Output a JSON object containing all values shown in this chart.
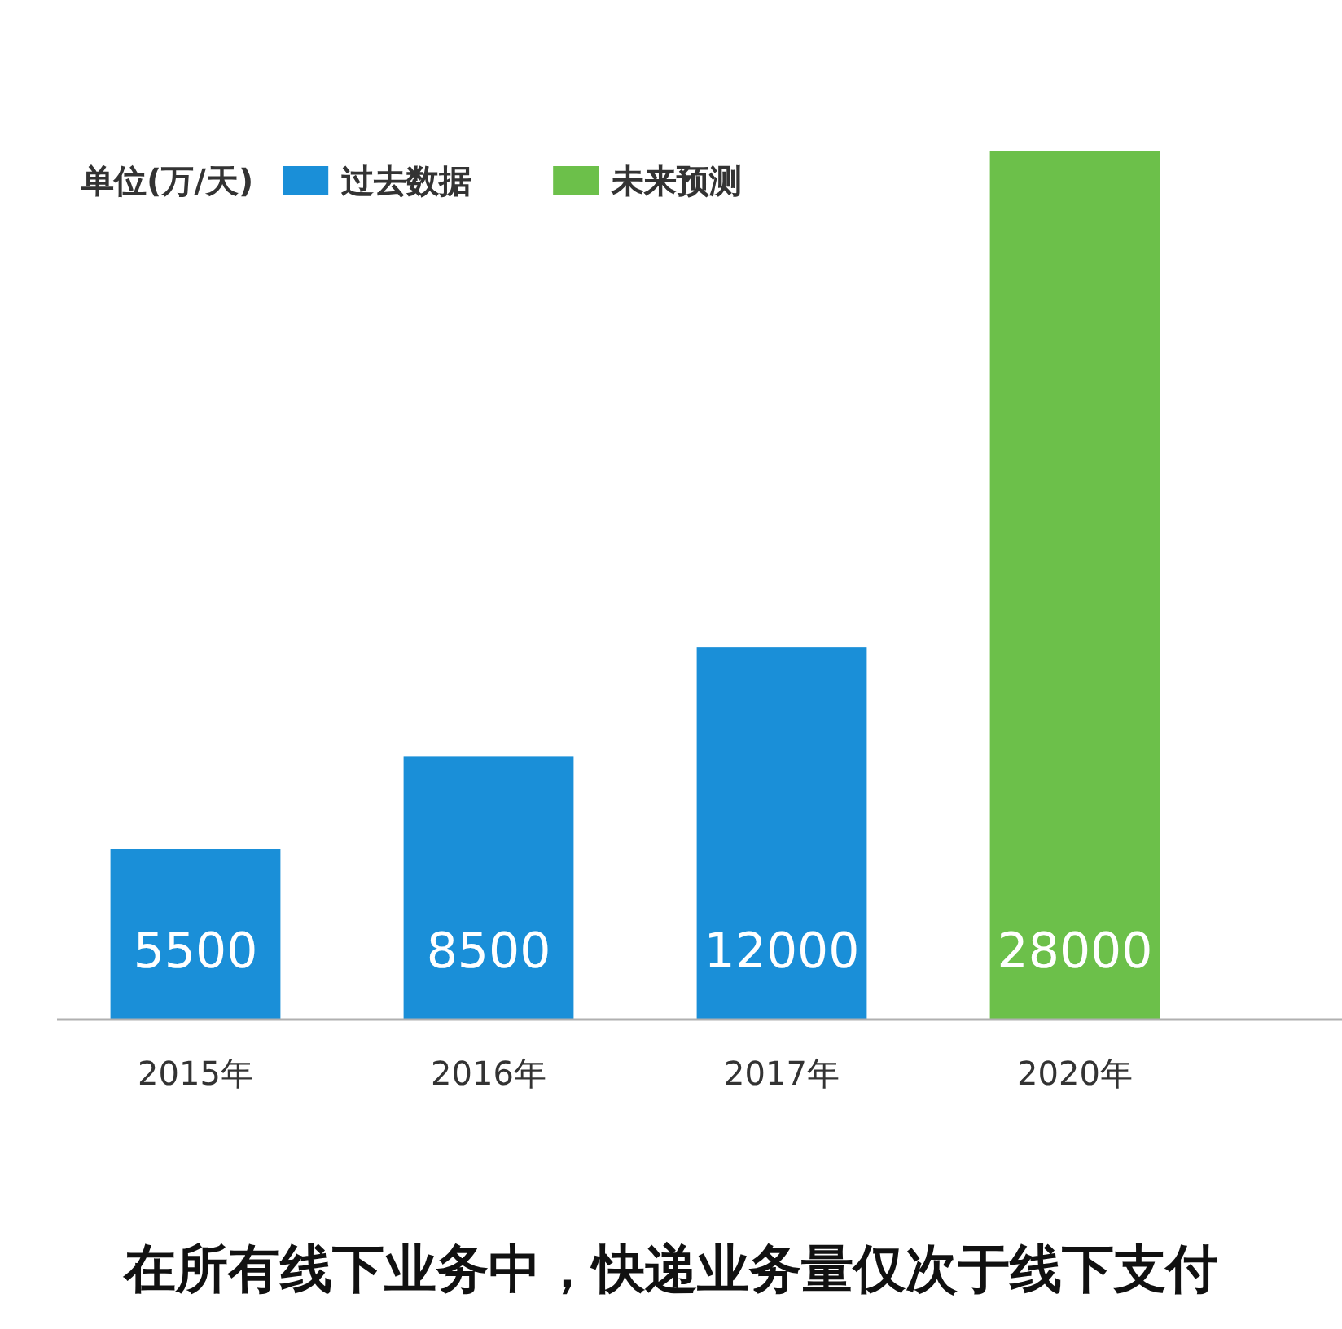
{
  "chart_data": {
    "type": "bar",
    "title": "在所有线下业务中，快递业务量仅次于线下支付",
    "legend_title": "单位(万/天)",
    "categories": [
      "2015年",
      "2016年",
      "2017年",
      "2020年"
    ],
    "series": [
      {
        "name": "过去数据",
        "color": "#1a8fd8",
        "values": [
          5500,
          8500,
          12000,
          null
        ]
      },
      {
        "name": "未来预测",
        "color": "#6cc04a",
        "values": [
          null,
          null,
          null,
          28000
        ]
      }
    ],
    "stacked": true,
    "data_labels": true,
    "legend": "top left"
  }
}
